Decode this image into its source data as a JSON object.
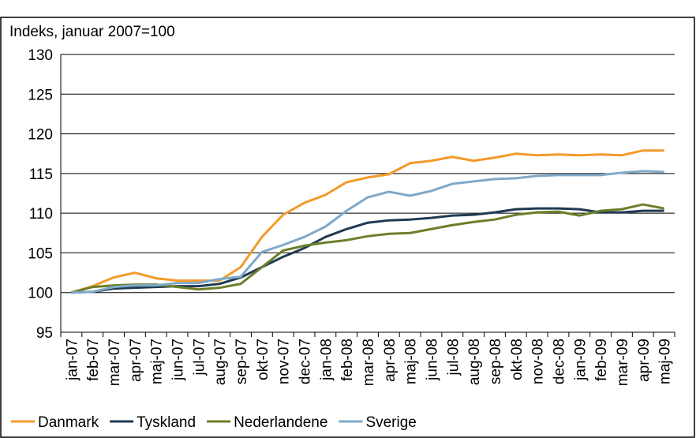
{
  "chart_data": {
    "type": "line",
    "y_label": "Indeks, januar 2007=100",
    "categories": [
      "jan-07",
      "feb-07",
      "mar-07",
      "apr-07",
      "maj-07",
      "jun-07",
      "jul-07",
      "aug-07",
      "sep-07",
      "okt-07",
      "nov-07",
      "dec-07",
      "jan-08",
      "feb-08",
      "mar-08",
      "apr-08",
      "maj-08",
      "jun-08",
      "jul-08",
      "aug-08",
      "sep-08",
      "okt-08",
      "nov-08",
      "dec-08",
      "jan-09",
      "feb-09",
      "mar-09",
      "apr-09",
      "maj-09"
    ],
    "series": [
      {
        "name": "Danmark",
        "color": "#f39a2b",
        "values": [
          100,
          100.8,
          101.9,
          102.5,
          101.8,
          101.5,
          101.5,
          101.5,
          103.2,
          107,
          109.8,
          111.3,
          112.3,
          113.9,
          114.5,
          114.9,
          116.3,
          116.6,
          117.1,
          116.6,
          117,
          117.5,
          117.3,
          117.4,
          117.3,
          117.4,
          117.3,
          117.9,
          117.9
        ]
      },
      {
        "name": "Tyskland",
        "color": "#1f3a52",
        "values": [
          100,
          100.1,
          100.5,
          100.6,
          100.7,
          100.8,
          100.8,
          101.1,
          101.9,
          103.2,
          104.5,
          105.6,
          107,
          108,
          108.8,
          109.1,
          109.2,
          109.4,
          109.7,
          109.8,
          110.1,
          110.5,
          110.6,
          110.6,
          110.5,
          110.1,
          110.1,
          110.3,
          110.3
        ]
      },
      {
        "name": "Nederlandene",
        "color": "#6b7f2a",
        "values": [
          100,
          100.7,
          100.9,
          101,
          101,
          100.7,
          100.4,
          100.6,
          101.1,
          103.2,
          105.3,
          105.9,
          106.3,
          106.6,
          107.1,
          107.4,
          107.5,
          108,
          108.5,
          108.9,
          109.2,
          109.8,
          110.1,
          110.2,
          109.7,
          110.3,
          110.5,
          111.1,
          110.6
        ]
      },
      {
        "name": "Sverige",
        "color": "#7fa9c9",
        "values": [
          100,
          100.1,
          100.7,
          100.9,
          100.9,
          101.2,
          101.2,
          101.7,
          102,
          105.1,
          106,
          107,
          108.3,
          110.3,
          112,
          112.7,
          112.2,
          112.8,
          113.7,
          114,
          114.3,
          114.4,
          114.7,
          114.8,
          114.8,
          114.8,
          115.1,
          115.3,
          115.2
        ]
      }
    ],
    "ylim": [
      95,
      130
    ],
    "yticks": [
      95,
      100,
      105,
      110,
      115,
      120,
      125,
      130
    ],
    "grid": true,
    "legend": "bottom"
  }
}
